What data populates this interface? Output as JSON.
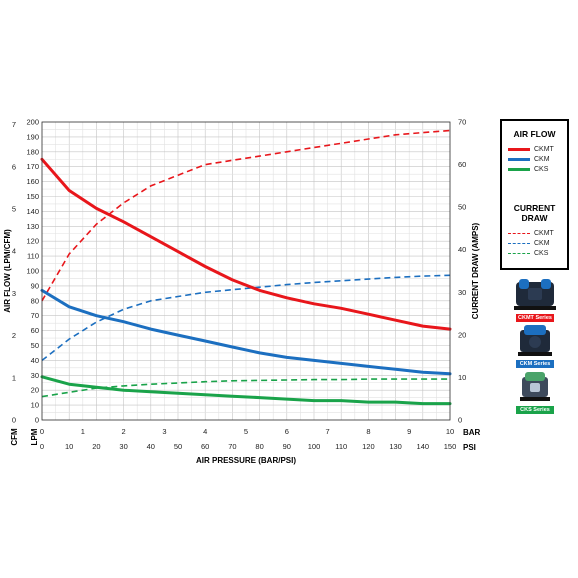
{
  "chart_data": {
    "type": "line",
    "xlabel": "AIR PRESSURE (BAR/PSI)",
    "ylabel_left": "AIR FLOW (LPM/CFM)",
    "ylabel_right": "CURRENT DRAW (AMPS)",
    "x_unit_bar": "BAR",
    "x_unit_psi": "PSI",
    "y_unit_cfm": "CFM",
    "y_unit_lpm": "LPM",
    "xlim_psi": [
      0,
      150
    ],
    "ylim_lpm": [
      0,
      200
    ],
    "ylim_amps": [
      0,
      70
    ],
    "xticks_psi": [
      "0",
      "10",
      "20",
      "30",
      "40",
      "50",
      "60",
      "70",
      "80",
      "90",
      "100",
      "110",
      "120",
      "130",
      "140",
      "150"
    ],
    "xticks_bar": [
      "0",
      "1",
      "2",
      "3",
      "4",
      "5",
      "6",
      "7",
      "8",
      "9",
      "10"
    ],
    "yticks_lpm": [
      "0",
      "10",
      "20",
      "30",
      "40",
      "50",
      "60",
      "70",
      "80",
      "90",
      "100",
      "110",
      "120",
      "130",
      "140",
      "150",
      "160",
      "170",
      "180",
      "190",
      "200"
    ],
    "yticks_cfm": [
      "0",
      "1",
      "2",
      "3",
      "4",
      "5",
      "6",
      "7"
    ],
    "yticks_amps": [
      "0",
      "10",
      "20",
      "30",
      "40",
      "50",
      "60",
      "70"
    ],
    "grid": true,
    "air_flow_series": [
      {
        "name": "CKMT",
        "color": "#e8161b",
        "x": [
          0,
          10,
          20,
          30,
          40,
          50,
          60,
          70,
          80,
          90,
          100,
          110,
          120,
          130,
          140,
          150
        ],
        "y": [
          175,
          154,
          142,
          133,
          123,
          113,
          103,
          94,
          87,
          82,
          78,
          75,
          71,
          67,
          63,
          61
        ]
      },
      {
        "name": "CKM",
        "color": "#1c6fc0",
        "x": [
          0,
          10,
          20,
          30,
          40,
          50,
          60,
          70,
          80,
          90,
          100,
          110,
          120,
          130,
          140,
          150
        ],
        "y": [
          87,
          76,
          70,
          66,
          61,
          57,
          53,
          49,
          45,
          42,
          40,
          38,
          36,
          34,
          32,
          31
        ]
      },
      {
        "name": "CKS",
        "color": "#1aa34a",
        "x": [
          0,
          10,
          20,
          30,
          40,
          50,
          60,
          70,
          80,
          90,
          100,
          110,
          120,
          130,
          140,
          150
        ],
        "y": [
          29,
          24,
          22,
          20,
          19,
          18,
          17,
          16,
          15,
          14,
          13,
          13,
          12,
          12,
          11,
          11
        ]
      }
    ],
    "current_draw_series": [
      {
        "name": "CKMT",
        "color": "#e8161b",
        "x": [
          0,
          10,
          20,
          30,
          40,
          50,
          60,
          70,
          80,
          90,
          100,
          110,
          120,
          130,
          140,
          150
        ],
        "y": [
          28,
          39,
          46,
          51,
          55,
          57.5,
          60,
          61,
          62,
          63,
          64,
          65,
          66,
          67,
          67.5,
          68
        ]
      },
      {
        "name": "CKM",
        "color": "#1c6fc0",
        "x": [
          0,
          10,
          20,
          30,
          40,
          50,
          60,
          70,
          80,
          90,
          100,
          110,
          120,
          130,
          140,
          150
        ],
        "y": [
          14,
          19,
          23,
          26,
          28,
          29,
          30,
          30.6,
          31.2,
          31.8,
          32.3,
          32.7,
          33.1,
          33.5,
          33.8,
          34
        ]
      },
      {
        "name": "CKS",
        "color": "#1aa34a",
        "x": [
          0,
          10,
          20,
          30,
          40,
          50,
          60,
          70,
          80,
          90,
          100,
          110,
          120,
          130,
          140,
          150
        ],
        "y": [
          5.5,
          6.5,
          7.5,
          8,
          8.4,
          8.7,
          9,
          9.2,
          9.3,
          9.4,
          9.5,
          9.5,
          9.6,
          9.6,
          9.6,
          9.6
        ]
      }
    ]
  },
  "legend": {
    "air_flow_title": "AIR FLOW",
    "current_draw_title": "CURRENT DRAW",
    "items": [
      "CKMT",
      "CKM",
      "CKS"
    ]
  },
  "products": [
    {
      "caption": "CKMT Series",
      "color": "#e8161b",
      "icon": "compressor-icon"
    },
    {
      "caption": "CKM Series",
      "color": "#1c6fc0",
      "icon": "compressor-icon"
    },
    {
      "caption": "CKS Series",
      "color": "#1aa34a",
      "icon": "compressor-icon"
    }
  ]
}
